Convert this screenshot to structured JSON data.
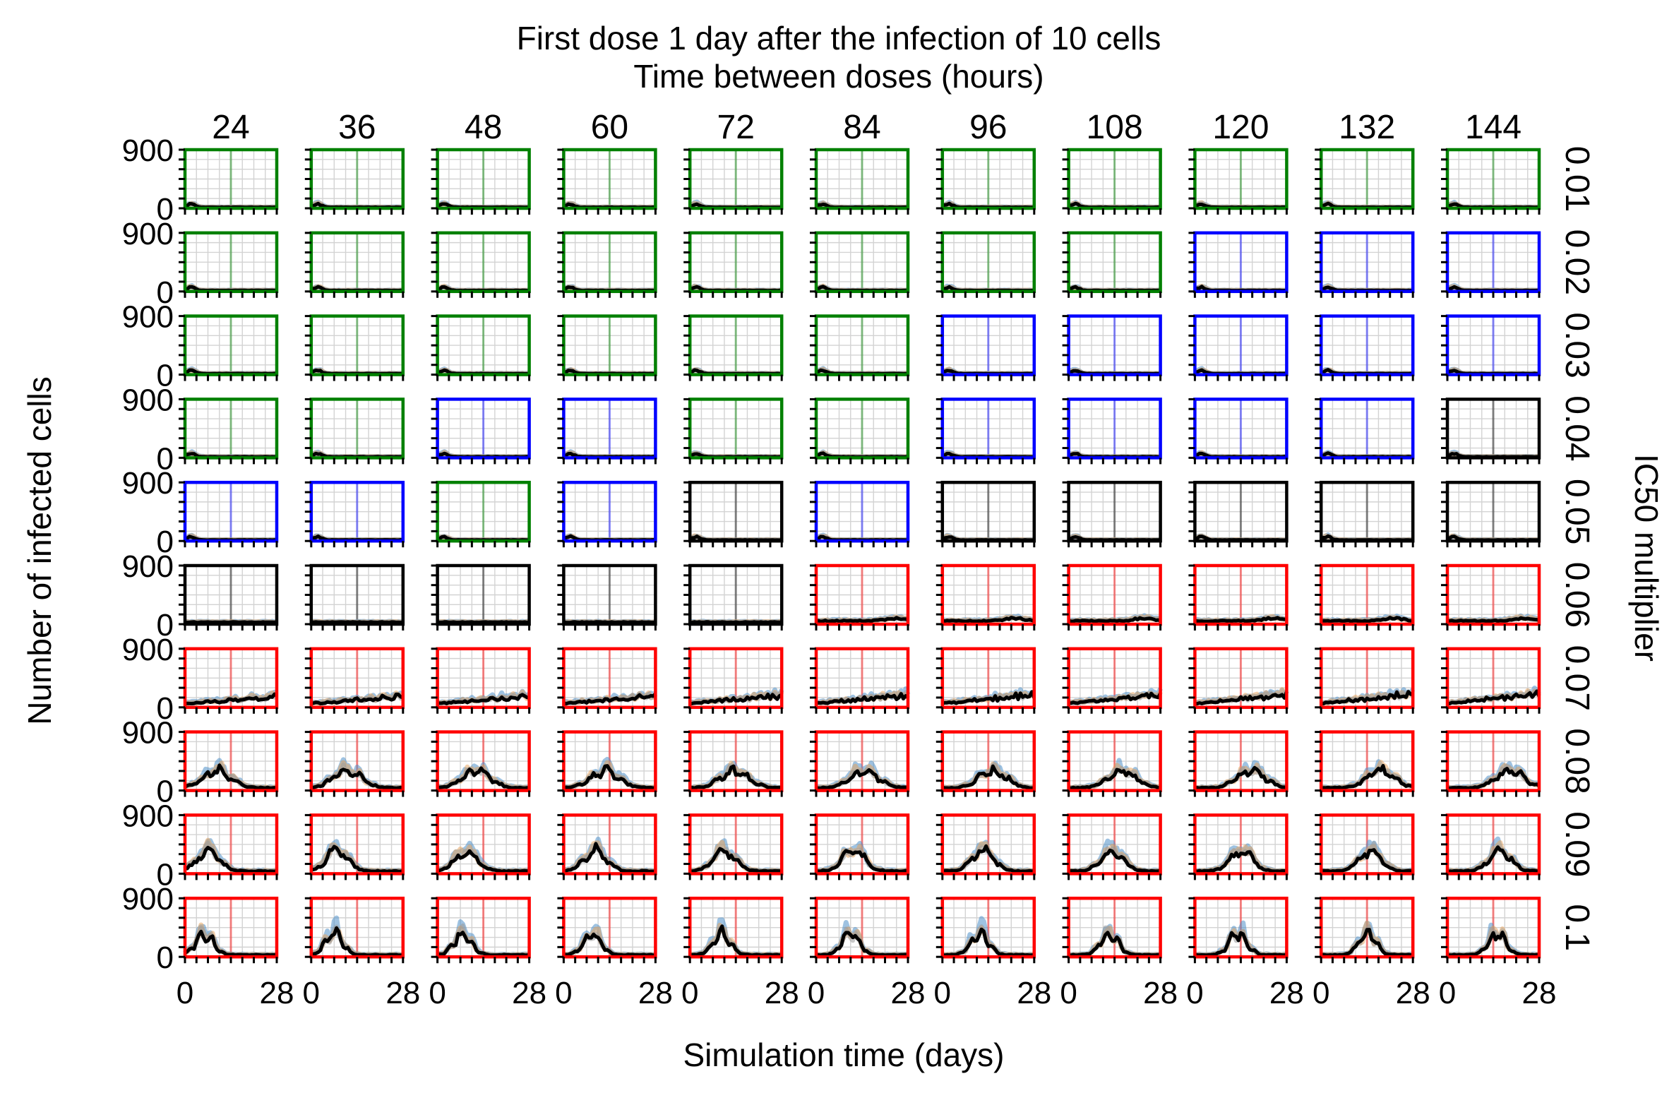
{
  "chart_data": {
    "type": "line",
    "title": "First dose 1 day after the infection of 10 cells",
    "col_header": "Time between doses (hours)",
    "row_header": "IC50 multiplier",
    "xlabel": "Simulation time (days)",
    "ylabel": "Number of infected cells",
    "xlim": [
      0,
      28
    ],
    "ylim": [
      0,
      900
    ],
    "x_tick_labels": [
      "0",
      "28"
    ],
    "y_tick_labels": [
      "900",
      "0"
    ],
    "dose_intervals_hours": [
      "24",
      "36",
      "48",
      "60",
      "72",
      "84",
      "96",
      "108",
      "120",
      "132",
      "144"
    ],
    "ic50_multipliers": [
      "0.01",
      "0.02",
      "0.03",
      "0.04",
      "0.05",
      "0.06",
      "0.07",
      "0.08",
      "0.09",
      "0.1"
    ],
    "panel_outcome_colors": {
      "green": "#008000",
      "blue": "#0000ff",
      "black": "#000000",
      "red": "#ff0000"
    },
    "series_colors": {
      "median": "#000000",
      "band_blue": "#4f8fc9",
      "band_orange": "#e8a055",
      "band_grey": "#9a9a9a"
    },
    "panel_border_color_grid": [
      [
        "green",
        "green",
        "green",
        "green",
        "green",
        "green",
        "green",
        "green",
        "green",
        "green",
        "green"
      ],
      [
        "green",
        "green",
        "green",
        "green",
        "green",
        "green",
        "green",
        "green",
        "blue",
        "blue",
        "blue"
      ],
      [
        "green",
        "green",
        "green",
        "green",
        "green",
        "green",
        "blue",
        "blue",
        "blue",
        "blue",
        "blue"
      ],
      [
        "green",
        "green",
        "blue",
        "blue",
        "green",
        "green",
        "blue",
        "blue",
        "blue",
        "blue",
        "black"
      ],
      [
        "blue",
        "blue",
        "green",
        "blue",
        "black",
        "blue",
        "black",
        "black",
        "black",
        "black",
        "black"
      ],
      [
        "black",
        "black",
        "black",
        "black",
        "black",
        "red",
        "red",
        "red",
        "red",
        "red",
        "red"
      ],
      [
        "red",
        "red",
        "red",
        "red",
        "red",
        "red",
        "red",
        "red",
        "red",
        "red",
        "red"
      ],
      [
        "red",
        "red",
        "red",
        "red",
        "red",
        "red",
        "red",
        "red",
        "red",
        "red",
        "red"
      ],
      [
        "red",
        "red",
        "red",
        "red",
        "red",
        "red",
        "red",
        "red",
        "red",
        "red",
        "red"
      ],
      [
        "red",
        "red",
        "red",
        "red",
        "red",
        "red",
        "red",
        "red",
        "red",
        "red",
        "red"
      ]
    ]
  }
}
